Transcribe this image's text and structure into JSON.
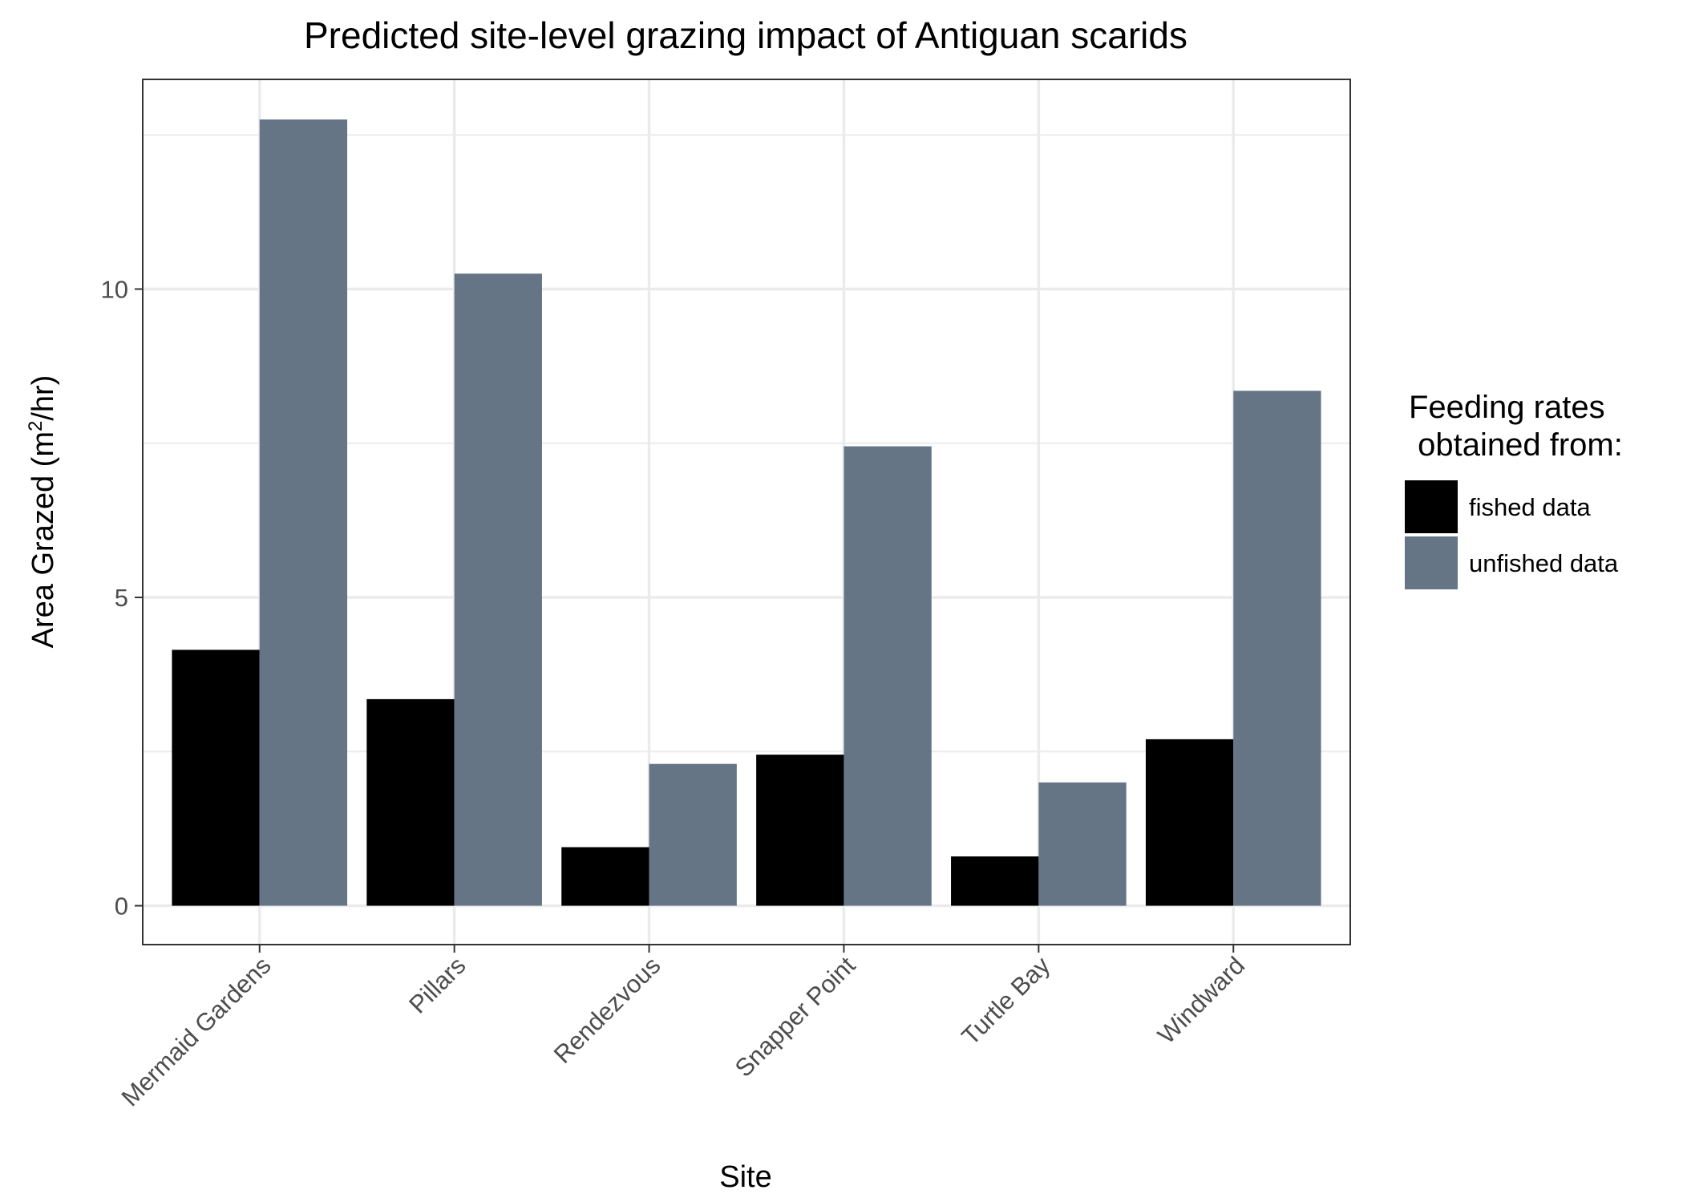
{
  "chart_data": {
    "type": "bar",
    "title": "Predicted site-level grazing impact of Antiguan scarids",
    "xlabel": "Site",
    "ylabel_main": "Area Grazed (m",
    "ylabel_sup": "2",
    "ylabel_tail": "/hr)",
    "categories": [
      "Mermaid Gardens",
      "Pillars",
      "Rendezvous",
      "Snapper Point",
      "Turtle Bay",
      "Windward"
    ],
    "series": [
      {
        "name": "fished data",
        "color": "#000000",
        "values": [
          4.15,
          3.35,
          0.95,
          2.45,
          0.8,
          2.7
        ]
      },
      {
        "name": "unfished data",
        "color": "#657586",
        "values": [
          12.75,
          10.25,
          2.3,
          7.45,
          2.0,
          8.35
        ]
      }
    ],
    "ylim": [
      -0.63,
      13.4
    ],
    "yticks": [
      0,
      5,
      10
    ],
    "legend": {
      "title_line1": "Feeding rates",
      "title_line2": " obtained from:",
      "position": "right"
    },
    "grid": true,
    "theme_colors": {
      "grid": "#ebebeb",
      "panel_border": "#333333",
      "tick_text": "#4d4d4d"
    }
  }
}
